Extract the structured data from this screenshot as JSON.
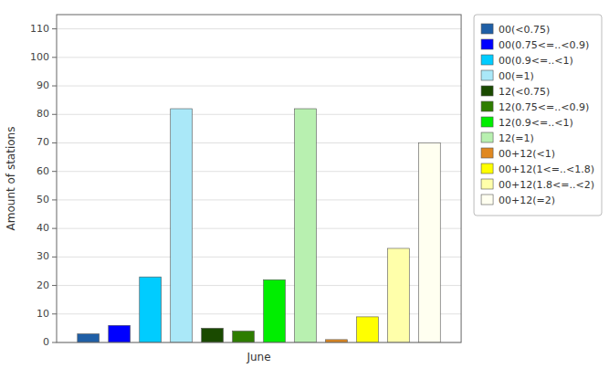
{
  "chart_data": {
    "type": "bar",
    "y_label": "Amount of stations",
    "categories": [
      "June"
    ],
    "series": [
      {
        "name": "00(<0.75)",
        "color": "#1f5fa6",
        "values": [
          3
        ]
      },
      {
        "name": "00(0.75<=..<0.9)",
        "color": "#0000ff",
        "values": [
          6
        ]
      },
      {
        "name": "00(0.9<=..<1)",
        "color": "#00ccff",
        "values": [
          23
        ]
      },
      {
        "name": "00(=1)",
        "color": "#aae8f8",
        "values": [
          82
        ]
      },
      {
        "name": "12(<0.75)",
        "color": "#1a4a00",
        "values": [
          5
        ]
      },
      {
        "name": "12(0.75<=..<0.9)",
        "color": "#2e7d00",
        "values": [
          4
        ]
      },
      {
        "name": "12(0.9<=..<1)",
        "color": "#00ee00",
        "values": [
          22
        ]
      },
      {
        "name": "12(=1)",
        "color": "#b8f0b0",
        "values": [
          82
        ]
      },
      {
        "name": "00+12(<1)",
        "color": "#e08820",
        "values": [
          1
        ]
      },
      {
        "name": "00+12(1<=..<1.8)",
        "color": "#ffff00",
        "values": [
          9
        ]
      },
      {
        "name": "00+12(1.8<=..<2)",
        "color": "#ffffaa",
        "values": [
          33
        ]
      },
      {
        "name": "00+12(=2)",
        "color": "#fffff0",
        "values": [
          70
        ]
      }
    ],
    "ylim": [
      0,
      115
    ],
    "yticks": [
      0,
      10,
      20,
      30,
      40,
      50,
      60,
      70,
      80,
      90,
      100,
      110
    ],
    "grid": true,
    "legend": "upper right"
  }
}
